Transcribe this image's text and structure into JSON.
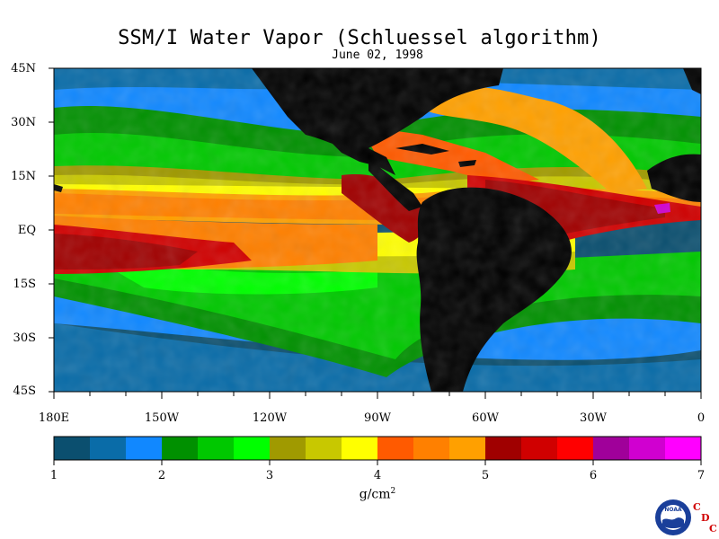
{
  "title": "SSM/I Water Vapor (Schluessel algorithm)",
  "date": "June 02, 1998",
  "latitude_labels": [
    "45N",
    "30N",
    "15N",
    "EQ",
    "15S",
    "30S",
    "45S"
  ],
  "longitude_labels": [
    "180E",
    "150W",
    "120W",
    "90W",
    "60W",
    "30W",
    "0"
  ],
  "colorbar": {
    "tick_labels": [
      "1",
      "2",
      "3",
      "4",
      "5",
      "6",
      "7"
    ],
    "units_base": "g/cm",
    "units_exp": "2",
    "colors": [
      "#0b4f6f",
      "#0a6ca8",
      "#1188ff",
      "#009000",
      "#00c800",
      "#00ff00",
      "#a09a00",
      "#c8c800",
      "#ffff00",
      "#ff5a00",
      "#ff8000",
      "#ffa000",
      "#a00000",
      "#d00000",
      "#ff0000",
      "#a0009a",
      "#d000d0",
      "#ff00ff"
    ]
  },
  "colors": {
    "land": "#000000",
    "ocean_dry": "#0b4f6f"
  },
  "logo": {
    "agency": "NOAA",
    "lab_letters": [
      "C",
      "D",
      "C"
    ]
  }
}
